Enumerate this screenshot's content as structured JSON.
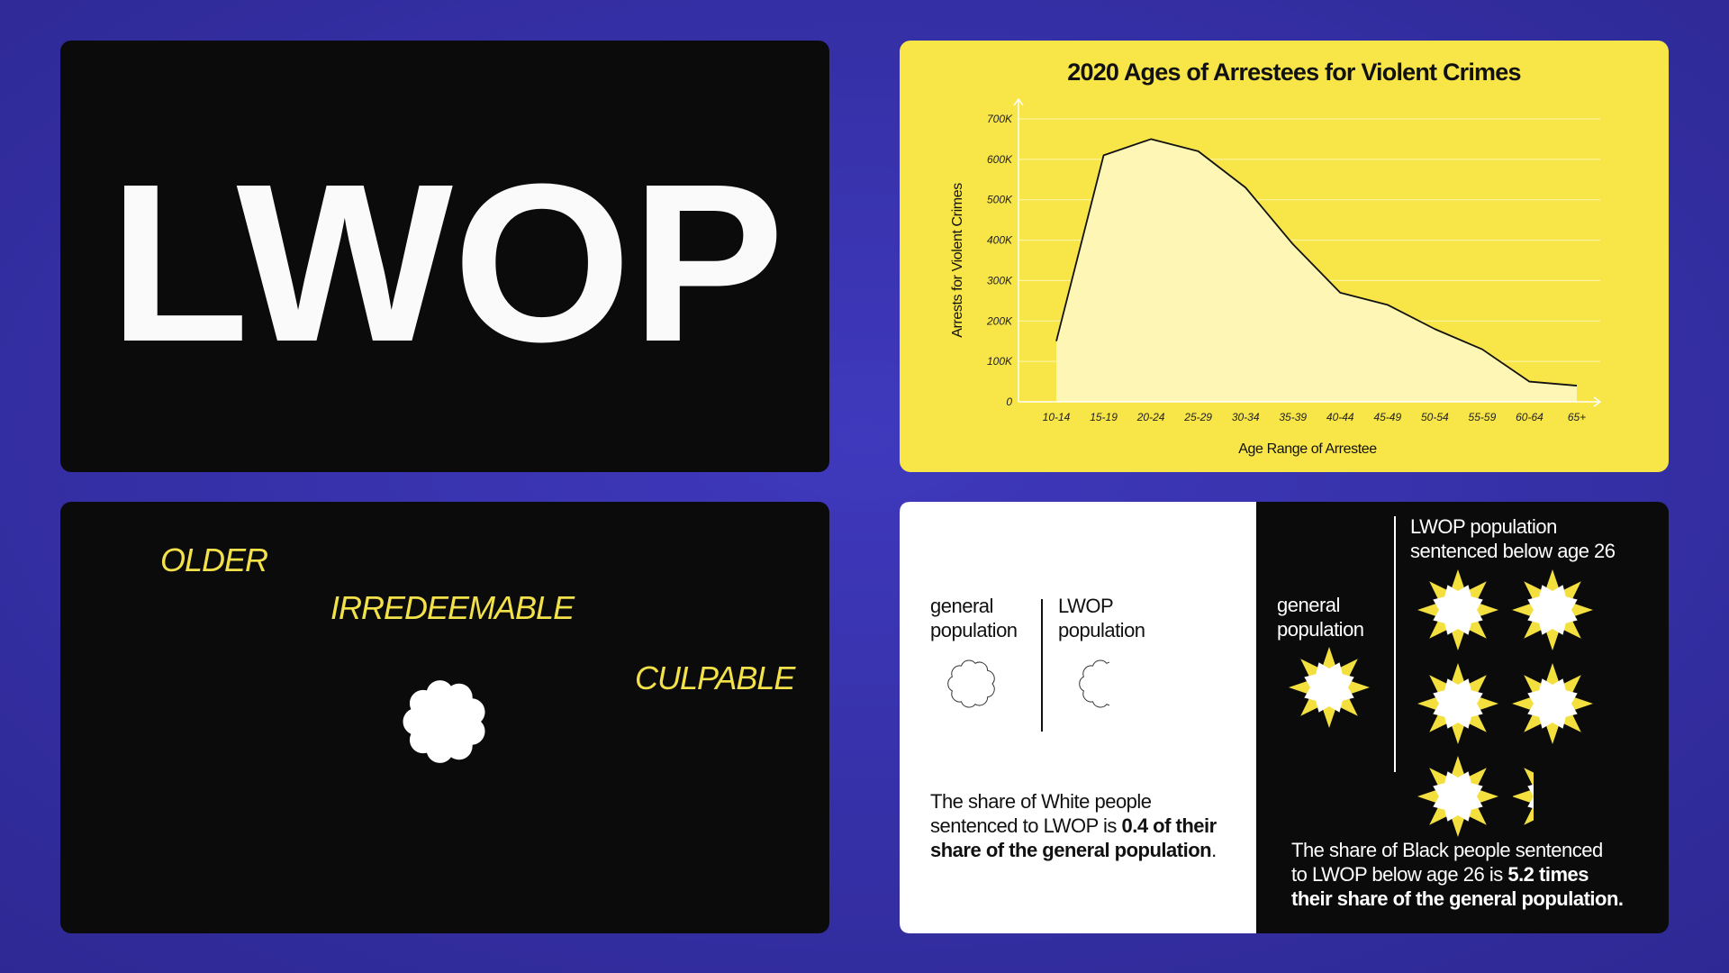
{
  "logo": "LWOP",
  "traits": [
    "OLDER",
    "IRREDEEMABLE",
    "CULPABLE"
  ],
  "chart_data": {
    "type": "line",
    "title": "2020 Ages of Arrestees for Violent Crimes",
    "x_label": "Age Range of Arrestee",
    "y_label": "Arrests for Violent Crimes",
    "categories": [
      "10-14",
      "15-19",
      "20-24",
      "25-29",
      "30-34",
      "35-39",
      "40-44",
      "45-49",
      "50-54",
      "55-59",
      "60-64",
      "65+"
    ],
    "values": [
      150000,
      610000,
      650000,
      620000,
      530000,
      390000,
      270000,
      240000,
      180000,
      130000,
      50000,
      40000
    ],
    "color": "#111111",
    "fill": "#fdf6b4",
    "ylim": [
      0,
      700000
    ],
    "yticks": [
      0,
      {
        "value": 100000,
        "label": "100K"
      },
      {
        "value": 200000,
        "label": "200K"
      },
      {
        "value": 300000,
        "label": "300K"
      },
      {
        "value": 400000,
        "label": "400K"
      },
      {
        "value": 500000,
        "label": "500K"
      },
      {
        "value": 600000,
        "label": "600K"
      },
      {
        "value": 700000,
        "label": "700K"
      }
    ],
    "grid": true
  },
  "white_panel": {
    "general_label": [
      "general",
      "population"
    ],
    "lwop_label": [
      "LWOP",
      "population"
    ],
    "paragraph": [
      [
        {
          "text": "The share of White people"
        }
      ],
      [
        {
          "text": "sentenced to LWOP is "
        },
        {
          "text": "0.4 of their",
          "bold": true
        }
      ],
      [
        {
          "text": "share of the general population",
          "bold": true
        },
        {
          "text": "."
        }
      ]
    ]
  },
  "black_panel": {
    "general_label": [
      "general",
      "population"
    ],
    "lwop_label": [
      "LWOP population",
      "sentenced below age 26"
    ],
    "paragraph": [
      [
        {
          "text": "The share of Black people sentenced"
        }
      ],
      [
        {
          "text": "to LWOP below age 26 is "
        },
        {
          "text": "5.2 times",
          "bold": true
        }
      ],
      [
        {
          "text": "their share of the general population.",
          "bold": true
        }
      ]
    ]
  }
}
